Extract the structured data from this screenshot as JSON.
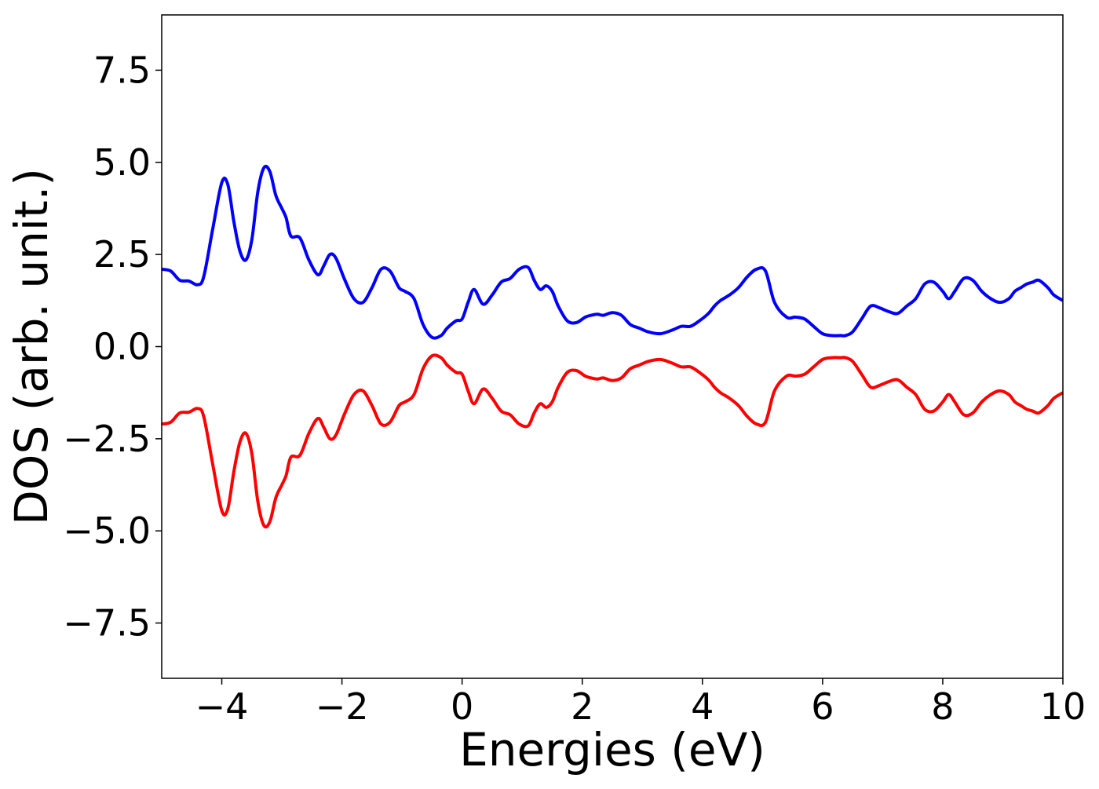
{
  "chart_data": {
    "type": "line",
    "xlabel": "Energies (eV)",
    "ylabel": "DOS (arb. unit.)",
    "xlim": [
      -5,
      10
    ],
    "ylim": [
      -9,
      9
    ],
    "xticks": [
      -4,
      -2,
      0,
      2,
      4,
      6,
      8,
      10
    ],
    "yticks": [
      -7.5,
      -5.0,
      -2.5,
      0.0,
      2.5,
      5.0,
      7.5
    ],
    "xtick_labels": [
      "−4",
      "−2",
      "0",
      "2",
      "4",
      "6",
      "8",
      "10"
    ],
    "ytick_labels": [
      "−7.5",
      "−5.0",
      "−2.5",
      "0.0",
      "2.5",
      "5.0",
      "7.5"
    ],
    "grid": false,
    "legend": "none",
    "series": [
      {
        "color": "#0000ff",
        "x": [
          -5.0,
          -4.85,
          -4.7,
          -4.55,
          -4.4,
          -4.3,
          -4.15,
          -4.0,
          -3.9,
          -3.8,
          -3.7,
          -3.6,
          -3.5,
          -3.4,
          -3.3,
          -3.2,
          -3.1,
          -3.0,
          -2.93,
          -2.85,
          -2.7,
          -2.55,
          -2.4,
          -2.3,
          -2.2,
          -2.1,
          -1.95,
          -1.8,
          -1.65,
          -1.5,
          -1.35,
          -1.2,
          -1.05,
          -0.95,
          -0.8,
          -0.65,
          -0.5,
          -0.35,
          -0.25,
          -0.1,
          0.0,
          0.1,
          0.2,
          0.35,
          0.5,
          0.65,
          0.8,
          0.95,
          1.1,
          1.2,
          1.3,
          1.4,
          1.5,
          1.6,
          1.75,
          1.9,
          2.05,
          2.15,
          2.25,
          2.35,
          2.5,
          2.65,
          2.8,
          2.95,
          3.1,
          3.3,
          3.5,
          3.65,
          3.8,
          3.95,
          4.1,
          4.2,
          4.3,
          4.45,
          4.6,
          4.75,
          4.9,
          5.05,
          5.2,
          5.4,
          5.55,
          5.7,
          5.85,
          6.0,
          6.15,
          6.3,
          6.38,
          6.5,
          6.65,
          6.8,
          6.95,
          7.1,
          7.25,
          7.4,
          7.55,
          7.7,
          7.85,
          8.0,
          8.1,
          8.2,
          8.35,
          8.5,
          8.65,
          8.8,
          8.95,
          9.1,
          9.2,
          9.3,
          9.4,
          9.5,
          9.6,
          9.75,
          9.85,
          10.0
        ],
        "y": [
          2.1,
          2.05,
          1.8,
          1.78,
          1.68,
          1.9,
          3.2,
          4.45,
          4.4,
          3.4,
          2.6,
          2.35,
          2.9,
          4.2,
          4.85,
          4.75,
          4.1,
          3.75,
          3.5,
          3.0,
          2.95,
          2.35,
          1.95,
          2.2,
          2.5,
          2.4,
          1.8,
          1.3,
          1.2,
          1.6,
          2.1,
          2.05,
          1.6,
          1.5,
          1.3,
          0.6,
          0.25,
          0.3,
          0.5,
          0.7,
          0.75,
          1.2,
          1.55,
          1.15,
          1.4,
          1.75,
          1.85,
          2.1,
          2.15,
          1.8,
          1.55,
          1.65,
          1.5,
          1.1,
          0.7,
          0.65,
          0.8,
          0.85,
          0.88,
          0.85,
          0.92,
          0.85,
          0.6,
          0.5,
          0.4,
          0.35,
          0.45,
          0.55,
          0.55,
          0.7,
          0.9,
          1.1,
          1.25,
          1.4,
          1.6,
          1.9,
          2.1,
          2.05,
          1.2,
          0.8,
          0.8,
          0.75,
          0.55,
          0.35,
          0.3,
          0.3,
          0.3,
          0.4,
          0.75,
          1.1,
          1.05,
          0.95,
          0.9,
          1.1,
          1.3,
          1.7,
          1.75,
          1.5,
          1.3,
          1.5,
          1.85,
          1.8,
          1.5,
          1.3,
          1.2,
          1.3,
          1.5,
          1.6,
          1.7,
          1.75,
          1.8,
          1.6,
          1.4,
          1.25
        ]
      },
      {
        "color": "#ff0000",
        "x": [
          -5.0,
          -4.85,
          -4.7,
          -4.55,
          -4.4,
          -4.3,
          -4.15,
          -4.0,
          -3.9,
          -3.8,
          -3.7,
          -3.6,
          -3.5,
          -3.4,
          -3.3,
          -3.2,
          -3.1,
          -3.0,
          -2.93,
          -2.85,
          -2.7,
          -2.55,
          -2.4,
          -2.3,
          -2.2,
          -2.1,
          -1.95,
          -1.8,
          -1.65,
          -1.5,
          -1.35,
          -1.2,
          -1.05,
          -0.95,
          -0.8,
          -0.65,
          -0.5,
          -0.35,
          -0.25,
          -0.1,
          0.0,
          0.1,
          0.2,
          0.35,
          0.5,
          0.65,
          0.8,
          0.95,
          1.1,
          1.2,
          1.3,
          1.4,
          1.5,
          1.6,
          1.75,
          1.9,
          2.05,
          2.15,
          2.25,
          2.35,
          2.5,
          2.65,
          2.8,
          2.95,
          3.1,
          3.3,
          3.5,
          3.65,
          3.8,
          3.95,
          4.1,
          4.2,
          4.3,
          4.45,
          4.6,
          4.75,
          4.9,
          5.05,
          5.2,
          5.4,
          5.55,
          5.7,
          5.85,
          6.0,
          6.15,
          6.3,
          6.38,
          6.5,
          6.65,
          6.8,
          6.95,
          7.1,
          7.25,
          7.4,
          7.55,
          7.7,
          7.85,
          8.0,
          8.1,
          8.2,
          8.35,
          8.5,
          8.65,
          8.8,
          8.95,
          9.1,
          9.2,
          9.3,
          9.4,
          9.5,
          9.6,
          9.75,
          9.85,
          10.0
        ],
        "y": [
          -2.1,
          -2.05,
          -1.8,
          -1.78,
          -1.68,
          -1.9,
          -3.2,
          -4.45,
          -4.4,
          -3.4,
          -2.6,
          -2.35,
          -2.9,
          -4.2,
          -4.85,
          -4.75,
          -4.1,
          -3.75,
          -3.5,
          -3.0,
          -2.95,
          -2.35,
          -1.95,
          -2.2,
          -2.5,
          -2.4,
          -1.8,
          -1.3,
          -1.2,
          -1.6,
          -2.1,
          -2.05,
          -1.6,
          -1.5,
          -1.3,
          -0.6,
          -0.25,
          -0.3,
          -0.5,
          -0.7,
          -0.75,
          -1.2,
          -1.55,
          -1.15,
          -1.4,
          -1.75,
          -1.85,
          -2.1,
          -2.15,
          -1.8,
          -1.55,
          -1.65,
          -1.5,
          -1.1,
          -0.7,
          -0.65,
          -0.8,
          -0.85,
          -0.88,
          -0.85,
          -0.92,
          -0.85,
          -0.6,
          -0.5,
          -0.4,
          -0.35,
          -0.45,
          -0.55,
          -0.55,
          -0.7,
          -0.9,
          -1.1,
          -1.25,
          -1.4,
          -1.6,
          -1.9,
          -2.1,
          -2.05,
          -1.2,
          -0.8,
          -0.8,
          -0.75,
          -0.55,
          -0.35,
          -0.3,
          -0.3,
          -0.3,
          -0.4,
          -0.75,
          -1.1,
          -1.05,
          -0.95,
          -0.9,
          -1.1,
          -1.3,
          -1.7,
          -1.75,
          -1.5,
          -1.3,
          -1.5,
          -1.85,
          -1.8,
          -1.5,
          -1.3,
          -1.2,
          -1.3,
          -1.5,
          -1.6,
          -1.7,
          -1.75,
          -1.8,
          -1.6,
          -1.4,
          -1.25
        ]
      }
    ]
  }
}
